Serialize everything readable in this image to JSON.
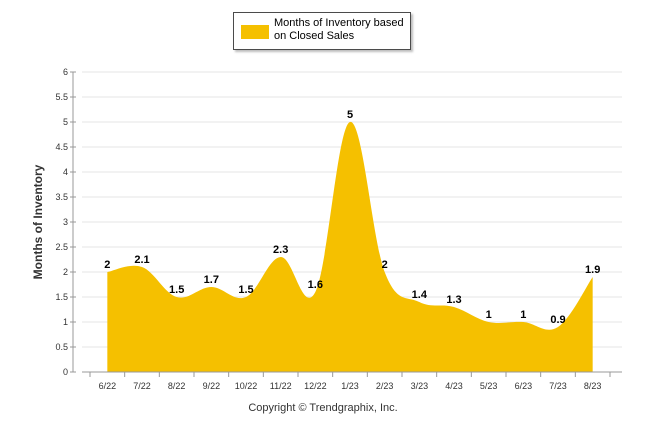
{
  "chart_data": {
    "type": "area",
    "title": "",
    "xlabel": "",
    "ylabel": "Months of Inventory",
    "categories": [
      "6/22",
      "7/22",
      "8/22",
      "9/22",
      "10/22",
      "11/22",
      "12/22",
      "1/23",
      "2/23",
      "3/23",
      "4/23",
      "5/23",
      "6/23",
      "7/23",
      "8/23"
    ],
    "series": [
      {
        "name": "Months of Inventory based on Closed Sales",
        "values": [
          2,
          2.1,
          1.5,
          1.7,
          1.5,
          2.3,
          1.6,
          5,
          2,
          1.4,
          1.3,
          1,
          1,
          0.9,
          1.9
        ],
        "labels": [
          "2",
          "2.1",
          "1.5",
          "1.7",
          "1.5",
          "2.3",
          "1.6",
          "5",
          "2",
          "1.4",
          "1.3",
          "1",
          "1",
          "0.9",
          "1.9"
        ],
        "color": "#f5c000"
      }
    ],
    "ylim": [
      0,
      6
    ],
    "yticks": [
      "0",
      "0.5",
      "1",
      "1.5",
      "2",
      "2.5",
      "3",
      "3.5",
      "4",
      "4.5",
      "5",
      "5.5",
      "6"
    ],
    "grid": true,
    "legend_position": "top-center"
  },
  "footer": {
    "copyright": "Copyright © Trendgraphix, Inc."
  }
}
